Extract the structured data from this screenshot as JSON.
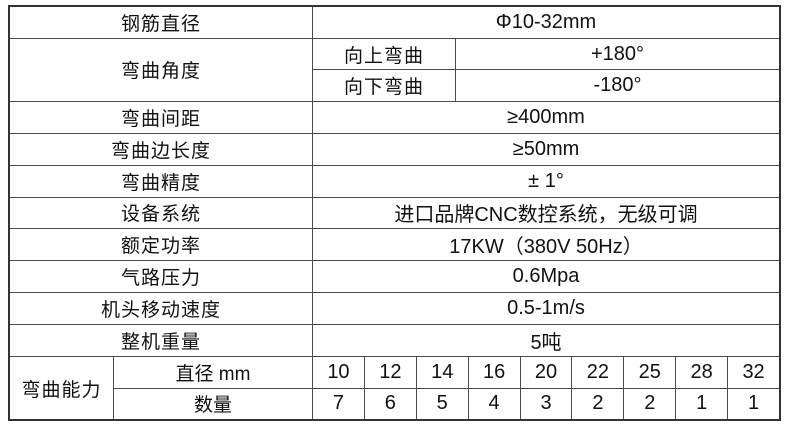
{
  "spec_table": {
    "rebar_diameter": {
      "label": "钢筋直径",
      "value": "Φ10-32mm"
    },
    "bending_angle": {
      "label": "弯曲角度",
      "up": {
        "label": "向上弯曲",
        "value": "+180°"
      },
      "down": {
        "label": "向下弯曲",
        "value": "-180°"
      }
    },
    "bending_spacing": {
      "label": "弯曲间距",
      "value": "≥400mm"
    },
    "bending_side_length": {
      "label": "弯曲边长度",
      "value": "≥50mm"
    },
    "bending_precision": {
      "label": "弯曲精度",
      "value": "± 1°"
    },
    "equipment_system": {
      "label": "设备系统",
      "value": "进口品牌CNC数控系统，无级可调"
    },
    "rated_power": {
      "label": "额定功率",
      "value": "17KW（380V 50Hz）"
    },
    "air_pressure": {
      "label": "气路压力",
      "value": "0.6Mpa"
    },
    "head_moving_speed": {
      "label": "机头移动速度",
      "value": "0.5-1m/s"
    },
    "total_weight": {
      "label": "整机重量",
      "value": "5吨"
    },
    "bending_capacity": {
      "label": "弯曲能力",
      "diameter_row_label": "直径 mm",
      "quantity_row_label": "数量",
      "diameters": [
        "10",
        "12",
        "14",
        "16",
        "20",
        "22",
        "25",
        "28",
        "32"
      ],
      "quantities": [
        "7",
        "6",
        "5",
        "4",
        "3",
        "2",
        "2",
        "1",
        "1"
      ]
    },
    "colors": {
      "border_outer": "#333333",
      "border_inner": "#4a4a4a",
      "text": "#111111",
      "background": "#ffffff"
    }
  }
}
